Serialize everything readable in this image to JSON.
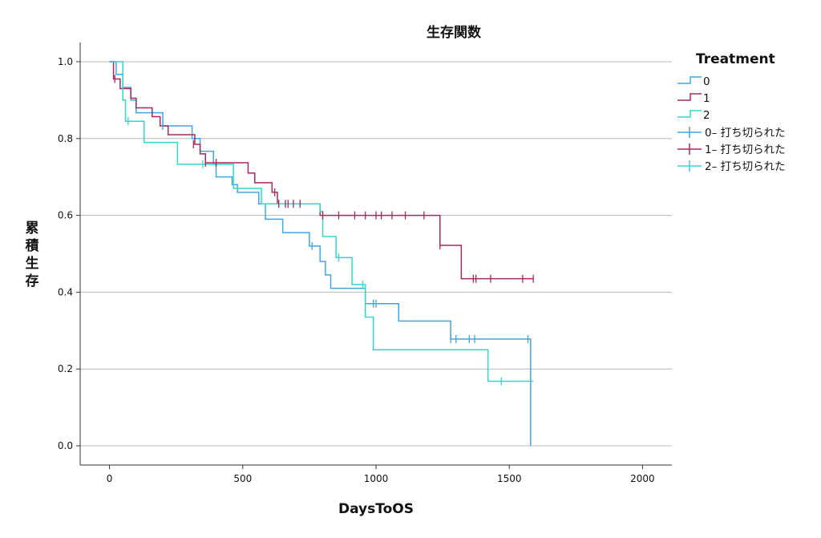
{
  "chart_data": {
    "type": "line",
    "title": "生存関数",
    "xlabel": "DaysToOS",
    "ylabel": "累積生存",
    "xlim": [
      -110,
      2110
    ],
    "ylim": [
      -0.05,
      1.05
    ],
    "x_ticks": [
      0,
      500,
      1000,
      1500,
      2000
    ],
    "y_ticks": [
      0.0,
      0.2,
      0.4,
      0.6,
      0.8,
      1.0
    ],
    "y_tick_labels": [
      "0.0",
      "0.2",
      "0.4",
      "0.6",
      "0.8",
      "1.0"
    ],
    "grid": "horizontal",
    "legend_title": "Treatment",
    "legend_position": "right",
    "series": [
      {
        "name": "0",
        "censored_label": "0– 打ち切られた",
        "color": "#3ea6e8",
        "steps": [
          [
            0,
            1.0
          ],
          [
            25,
            0.967
          ],
          [
            50,
            0.933
          ],
          [
            80,
            0.9
          ],
          [
            100,
            0.867
          ],
          [
            200,
            0.833
          ],
          [
            310,
            0.8
          ],
          [
            340,
            0.767
          ],
          [
            390,
            0.733
          ],
          [
            400,
            0.7
          ],
          [
            460,
            0.68
          ],
          [
            480,
            0.66
          ],
          [
            560,
            0.63
          ],
          [
            585,
            0.59
          ],
          [
            650,
            0.555
          ],
          [
            750,
            0.52
          ],
          [
            790,
            0.48
          ],
          [
            810,
            0.445
          ],
          [
            830,
            0.41
          ],
          [
            960,
            0.37
          ],
          [
            1085,
            0.325
          ],
          [
            1280,
            0.278
          ],
          [
            1580,
            0.278
          ],
          [
            1580,
            0.0
          ]
        ],
        "censored": [
          [
            200,
            0.833
          ],
          [
            760,
            0.52
          ],
          [
            990,
            0.37
          ],
          [
            1000,
            0.37
          ],
          [
            1280,
            0.278
          ],
          [
            1300,
            0.278
          ],
          [
            1350,
            0.278
          ],
          [
            1370,
            0.278
          ],
          [
            1570,
            0.278
          ]
        ]
      },
      {
        "name": "1",
        "censored_label": "1– 打ち切られた",
        "color": "#a8285e",
        "steps": [
          [
            0,
            1.0
          ],
          [
            15,
            0.955
          ],
          [
            40,
            0.93
          ],
          [
            80,
            0.905
          ],
          [
            100,
            0.88
          ],
          [
            160,
            0.857
          ],
          [
            190,
            0.833
          ],
          [
            220,
            0.81
          ],
          [
            320,
            0.785
          ],
          [
            340,
            0.76
          ],
          [
            360,
            0.737
          ],
          [
            520,
            0.71
          ],
          [
            545,
            0.685
          ],
          [
            610,
            0.66
          ],
          [
            630,
            0.63
          ],
          [
            790,
            0.6
          ],
          [
            1240,
            0.522
          ],
          [
            1320,
            0.435
          ],
          [
            1590,
            0.435
          ]
        ],
        "censored": [
          [
            20,
            0.955
          ],
          [
            315,
            0.785
          ],
          [
            360,
            0.737
          ],
          [
            400,
            0.737
          ],
          [
            620,
            0.66
          ],
          [
            635,
            0.63
          ],
          [
            660,
            0.63
          ],
          [
            670,
            0.63
          ],
          [
            690,
            0.63
          ],
          [
            715,
            0.63
          ],
          [
            800,
            0.6
          ],
          [
            860,
            0.6
          ],
          [
            920,
            0.6
          ],
          [
            960,
            0.6
          ],
          [
            1000,
            0.6
          ],
          [
            1020,
            0.6
          ],
          [
            1060,
            0.6
          ],
          [
            1110,
            0.6
          ],
          [
            1180,
            0.6
          ],
          [
            1240,
            0.522
          ],
          [
            1365,
            0.435
          ],
          [
            1375,
            0.435
          ],
          [
            1430,
            0.435
          ],
          [
            1550,
            0.435
          ],
          [
            1590,
            0.435
          ]
        ]
      },
      {
        "name": "2",
        "censored_label": "2– 打ち切られた",
        "color": "#33d6cc",
        "steps": [
          [
            0,
            1.0
          ],
          [
            50,
            0.9
          ],
          [
            60,
            0.845
          ],
          [
            130,
            0.79
          ],
          [
            255,
            0.733
          ],
          [
            370,
            0.733
          ],
          [
            465,
            0.67
          ],
          [
            570,
            0.63
          ],
          [
            790,
            0.61
          ],
          [
            800,
            0.545
          ],
          [
            850,
            0.49
          ],
          [
            910,
            0.42
          ],
          [
            960,
            0.335
          ],
          [
            990,
            0.25
          ],
          [
            1420,
            0.168
          ],
          [
            1590,
            0.168
          ]
        ],
        "censored": [
          [
            70,
            0.845
          ],
          [
            350,
            0.733
          ],
          [
            860,
            0.49
          ],
          [
            950,
            0.42
          ],
          [
            1470,
            0.168
          ]
        ]
      }
    ]
  }
}
